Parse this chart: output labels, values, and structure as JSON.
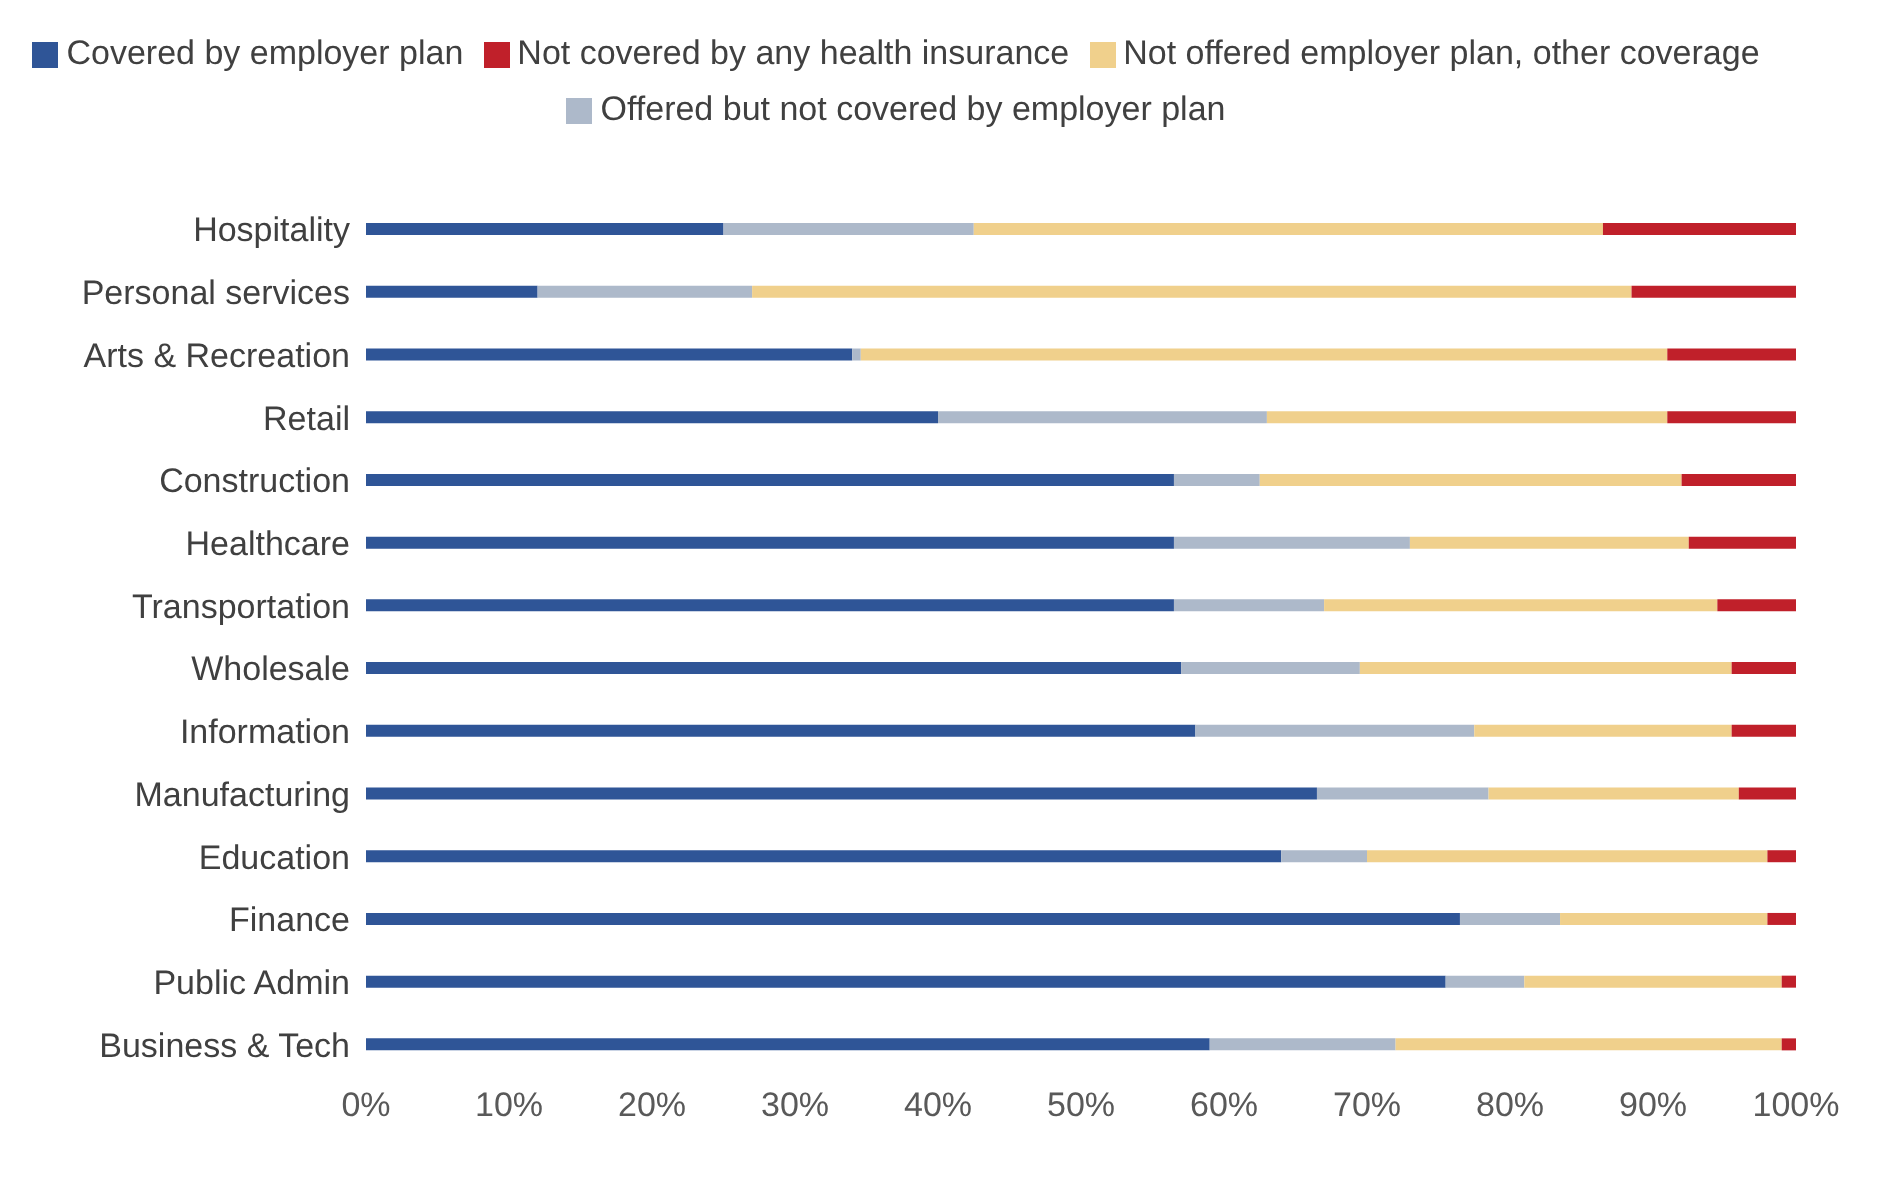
{
  "chart_data": {
    "type": "bar",
    "orientation": "horizontal",
    "stacked": true,
    "legend": "top",
    "categories": [
      "Hospitality",
      "Personal services",
      "Arts & Recreation",
      "Retail",
      "Construction",
      "Healthcare",
      "Transportation",
      "Wholesale",
      "Information",
      "Manufacturing",
      "Education",
      "Finance",
      "Public Admin",
      "Business & Tech"
    ],
    "series": [
      {
        "name": "Covered by employer plan",
        "color": "#2f5597",
        "values": [
          25,
          12,
          34,
          40,
          56.5,
          56.5,
          56.5,
          57,
          58,
          66.5,
          64,
          76.5,
          75.5,
          59
        ]
      },
      {
        "name": "Offered but not covered by employer plan",
        "color": "#adb9ca",
        "values": [
          17.5,
          15,
          0.6,
          23,
          6,
          16.5,
          10.5,
          12.5,
          19.5,
          12,
          6,
          7,
          5.5,
          13
        ]
      },
      {
        "name": "Not offered employer plan, other coverage",
        "color": "#f0d08c",
        "values": [
          44,
          61.5,
          56.4,
          28,
          29.5,
          19.5,
          27.5,
          26,
          18,
          17.5,
          28,
          14.5,
          18,
          27
        ]
      },
      {
        "name": "Not covered by any health insurance",
        "color": "#c0202a",
        "values": [
          13.5,
          11.5,
          9,
          9,
          8,
          7.5,
          5.5,
          4.5,
          4.5,
          4,
          2,
          2,
          1,
          1
        ]
      }
    ],
    "xlim": [
      0,
      100
    ],
    "xticks": [
      {
        "value": 0,
        "label": "0%"
      },
      {
        "value": 10,
        "label": "10%"
      },
      {
        "value": 20,
        "label": "20%"
      },
      {
        "value": 30,
        "label": "30%"
      },
      {
        "value": 40,
        "label": "40%"
      },
      {
        "value": 50,
        "label": "50%"
      },
      {
        "value": 60,
        "label": "60%"
      },
      {
        "value": 70,
        "label": "70%"
      },
      {
        "value": 80,
        "label": "80%"
      },
      {
        "value": 90,
        "label": "90%"
      },
      {
        "value": 100,
        "label": "100%"
      }
    ]
  }
}
